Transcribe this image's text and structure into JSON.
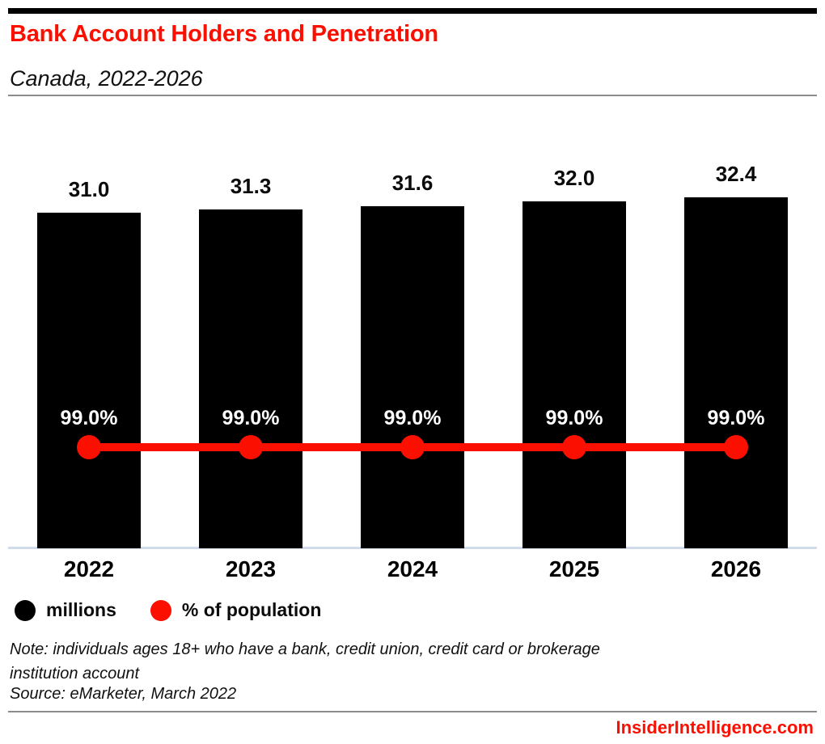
{
  "header": {
    "title": "Bank Account Holders and Penetration",
    "subtitle": "Canada, 2022-2026"
  },
  "chart_data": {
    "type": "bar",
    "categories": [
      "2022",
      "2023",
      "2024",
      "2025",
      "2026"
    ],
    "series": [
      {
        "name": "millions",
        "type": "bar",
        "color": "#000000",
        "values": [
          31.0,
          31.3,
          31.6,
          32.0,
          32.4
        ],
        "labels": [
          "31.0",
          "31.3",
          "31.6",
          "32.0",
          "32.4"
        ]
      },
      {
        "name": "% of population",
        "type": "line",
        "color": "#fa0f00",
        "values": [
          99.0,
          99.0,
          99.0,
          99.0,
          99.0
        ],
        "labels": [
          "99.0%",
          "99.0%",
          "99.0%",
          "99.0%",
          "99.0%"
        ]
      }
    ],
    "title": "Bank Account Holders and Penetration",
    "subtitle": "Canada, 2022-2026",
    "xlabel": "",
    "ylabel": "",
    "ylim_bar": [
      0,
      34
    ],
    "grid": false,
    "legend_position": "bottom"
  },
  "legend": {
    "items": [
      {
        "label": "millions",
        "color": "#000000"
      },
      {
        "label": "% of population",
        "color": "#fa0f00"
      }
    ]
  },
  "footnote": {
    "note": "Note: individuals ages 18+ who have a bank, credit union, credit card or brokerage institution account",
    "source": "Source: eMarketer, March 2022"
  },
  "footer": {
    "brand": "InsiderIntelligence.com"
  },
  "colors": {
    "accent_red": "#fa0f00",
    "bar_black": "#000000",
    "axis_line": "#d2dbec",
    "divider_gray": "#8c8c8c",
    "label_on_bar": "#ffffff"
  }
}
